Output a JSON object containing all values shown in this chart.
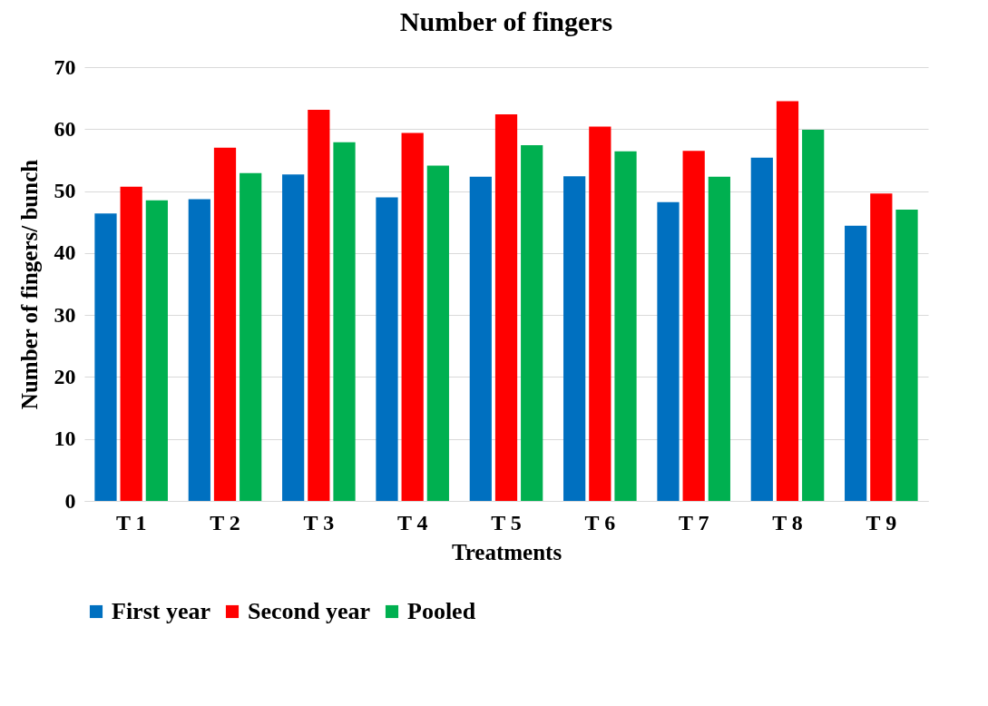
{
  "chart_data": {
    "type": "bar",
    "title": "Number of fingers",
    "xlabel": "Treatments",
    "ylabel": "Number of fingers/ bunch",
    "categories": [
      "T 1",
      "T 2",
      "T 3",
      "T 4",
      "T 5",
      "T 6",
      "T 7",
      "T 8",
      "T 9"
    ],
    "series": [
      {
        "name": "First year",
        "color": "#0070c0",
        "values": [
          46.4,
          48.7,
          52.7,
          49.0,
          52.3,
          52.4,
          48.2,
          55.4,
          44.4
        ]
      },
      {
        "name": "Second year",
        "color": "#ff0000",
        "values": [
          50.7,
          57.0,
          63.1,
          59.4,
          62.4,
          60.4,
          56.5,
          64.5,
          49.6
        ]
      },
      {
        "name": "Pooled",
        "color": "#00b050",
        "values": [
          48.5,
          52.9,
          57.9,
          54.1,
          57.4,
          56.4,
          52.3,
          59.9,
          47.0
        ]
      }
    ],
    "ylim": [
      0,
      70
    ],
    "yticks": [
      0,
      10,
      20,
      30,
      40,
      50,
      60,
      70
    ],
    "grid": "y",
    "legend": "bottom"
  }
}
